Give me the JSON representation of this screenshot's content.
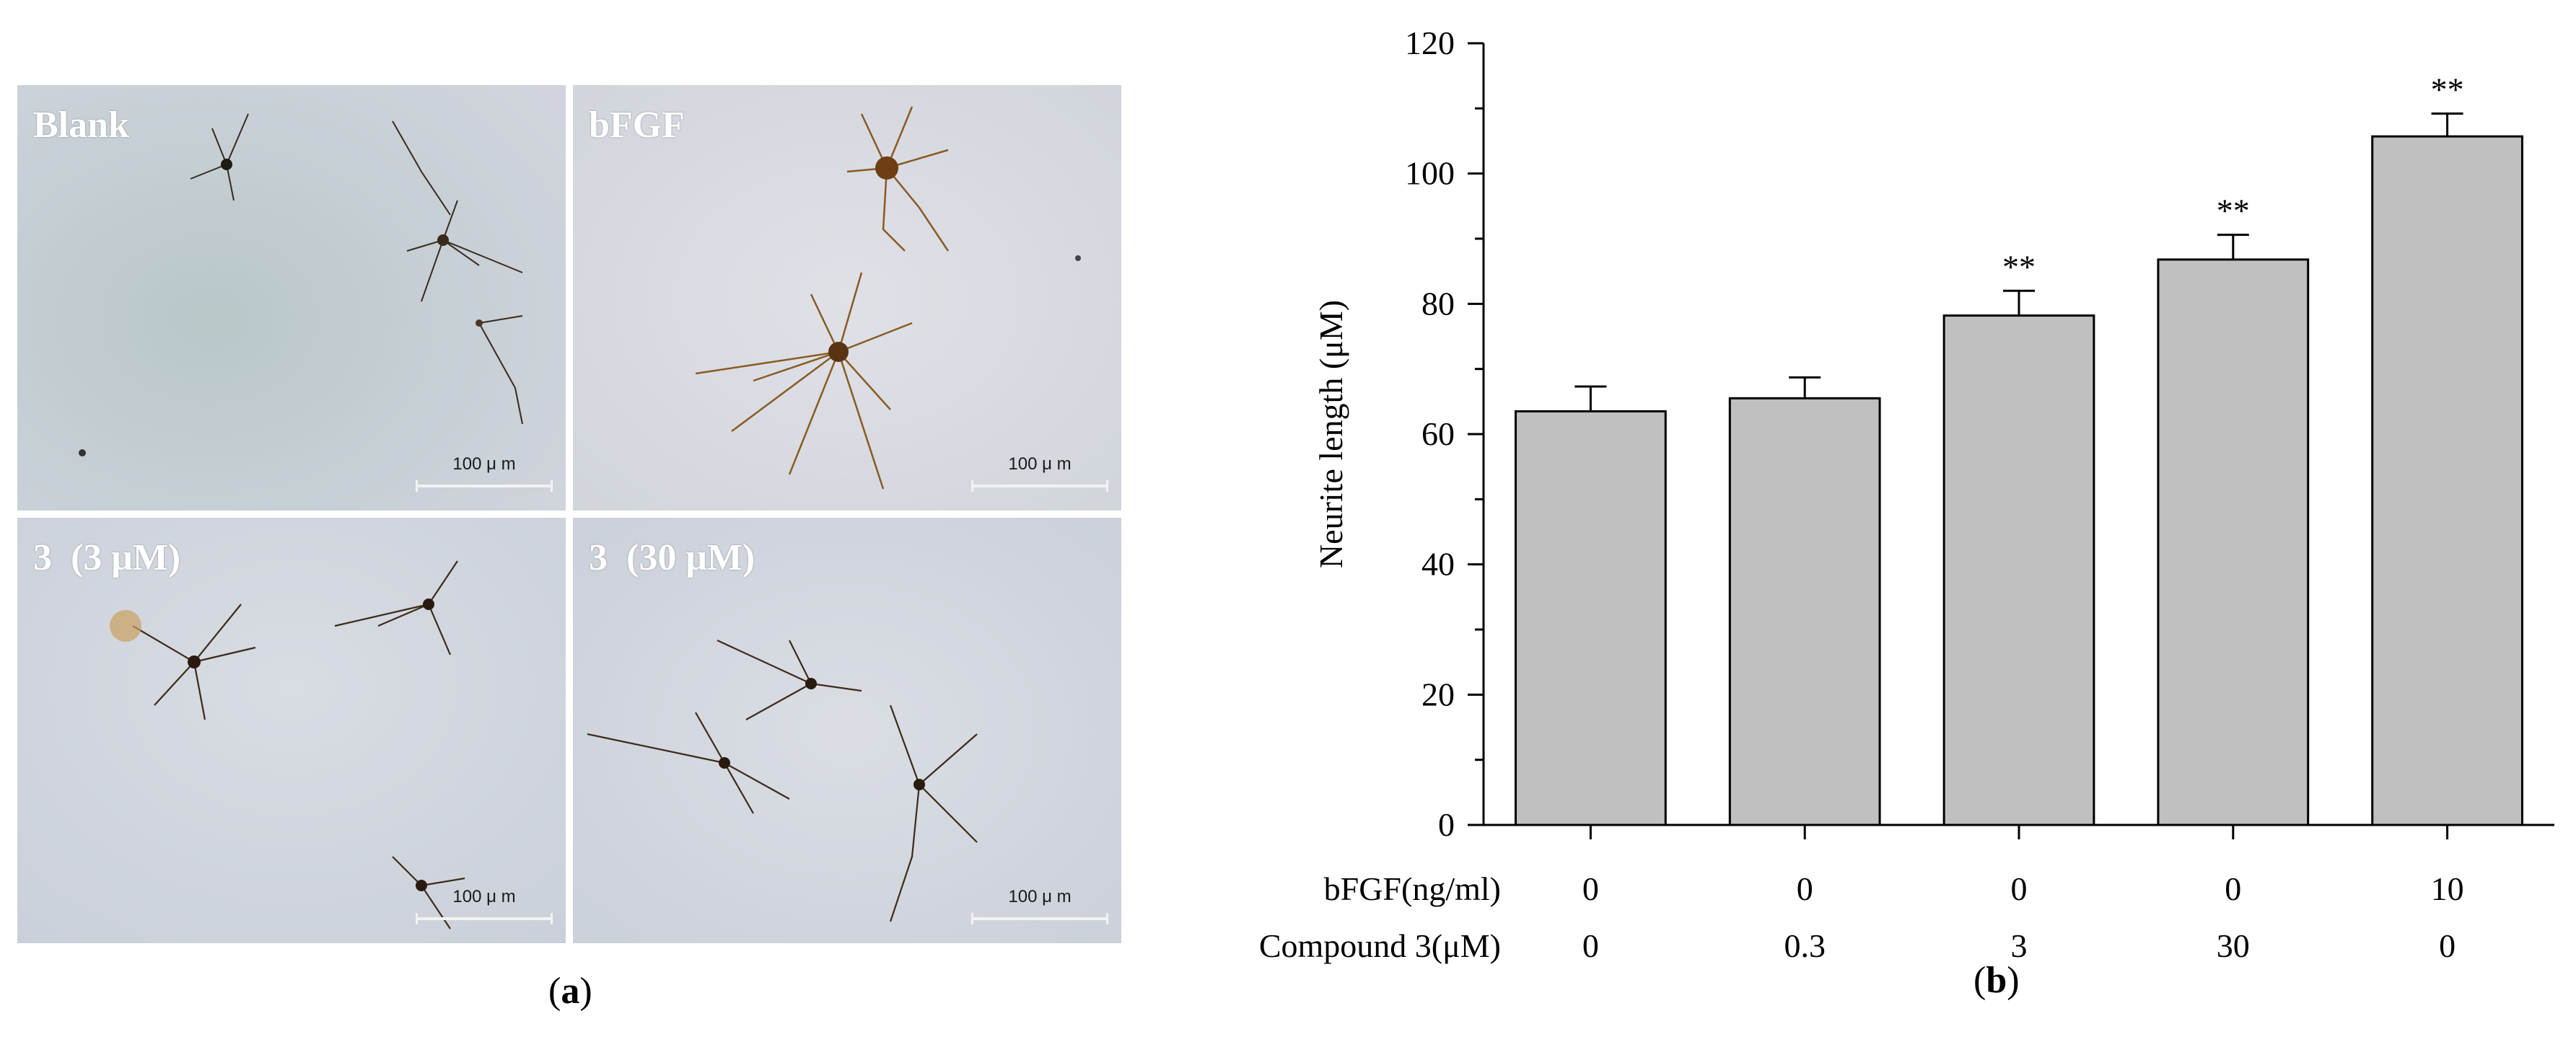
{
  "panel_a": {
    "caption_letter": "a",
    "micrographs": [
      {
        "label": "Blank",
        "scale_label": "100 μ m"
      },
      {
        "label": "bFGF",
        "scale_label": "100 μ m"
      },
      {
        "label": "3  (3 μM)",
        "scale_label": "100 μ m"
      },
      {
        "label": "3  (30 μM)",
        "scale_label": "100 μ m"
      }
    ]
  },
  "panel_b": {
    "caption_letter": "b",
    "table_rows": [
      {
        "label": "bFGF(ng/ml)",
        "values": [
          "0",
          "0",
          "0",
          "0",
          "10"
        ]
      },
      {
        "label": "Compound 3(μM)",
        "values": [
          "0",
          "0.3",
          "3",
          "30",
          "0"
        ]
      }
    ]
  },
  "chart_data": {
    "type": "bar",
    "title": "",
    "xlabel": "",
    "ylabel": "Neurite length (μM)",
    "ylim": [
      0,
      120
    ],
    "yticks": [
      0,
      20,
      40,
      60,
      80,
      100,
      120
    ],
    "categories": [
      "bFGF 0 / Compound 3 0",
      "bFGF 0 / Compound 3 0.3",
      "bFGF 0 / Compound 3 3",
      "bFGF 0 / Compound 3 30",
      "bFGF 10 / Compound 3 0"
    ],
    "values": [
      63.5,
      65.5,
      78.2,
      86.8,
      105.7
    ],
    "errors": [
      3.8,
      3.2,
      3.8,
      3.8,
      3.5
    ],
    "significance": [
      "",
      "",
      "**",
      "**",
      "**"
    ],
    "bar_color": "#c0c0c0",
    "grid": false
  }
}
